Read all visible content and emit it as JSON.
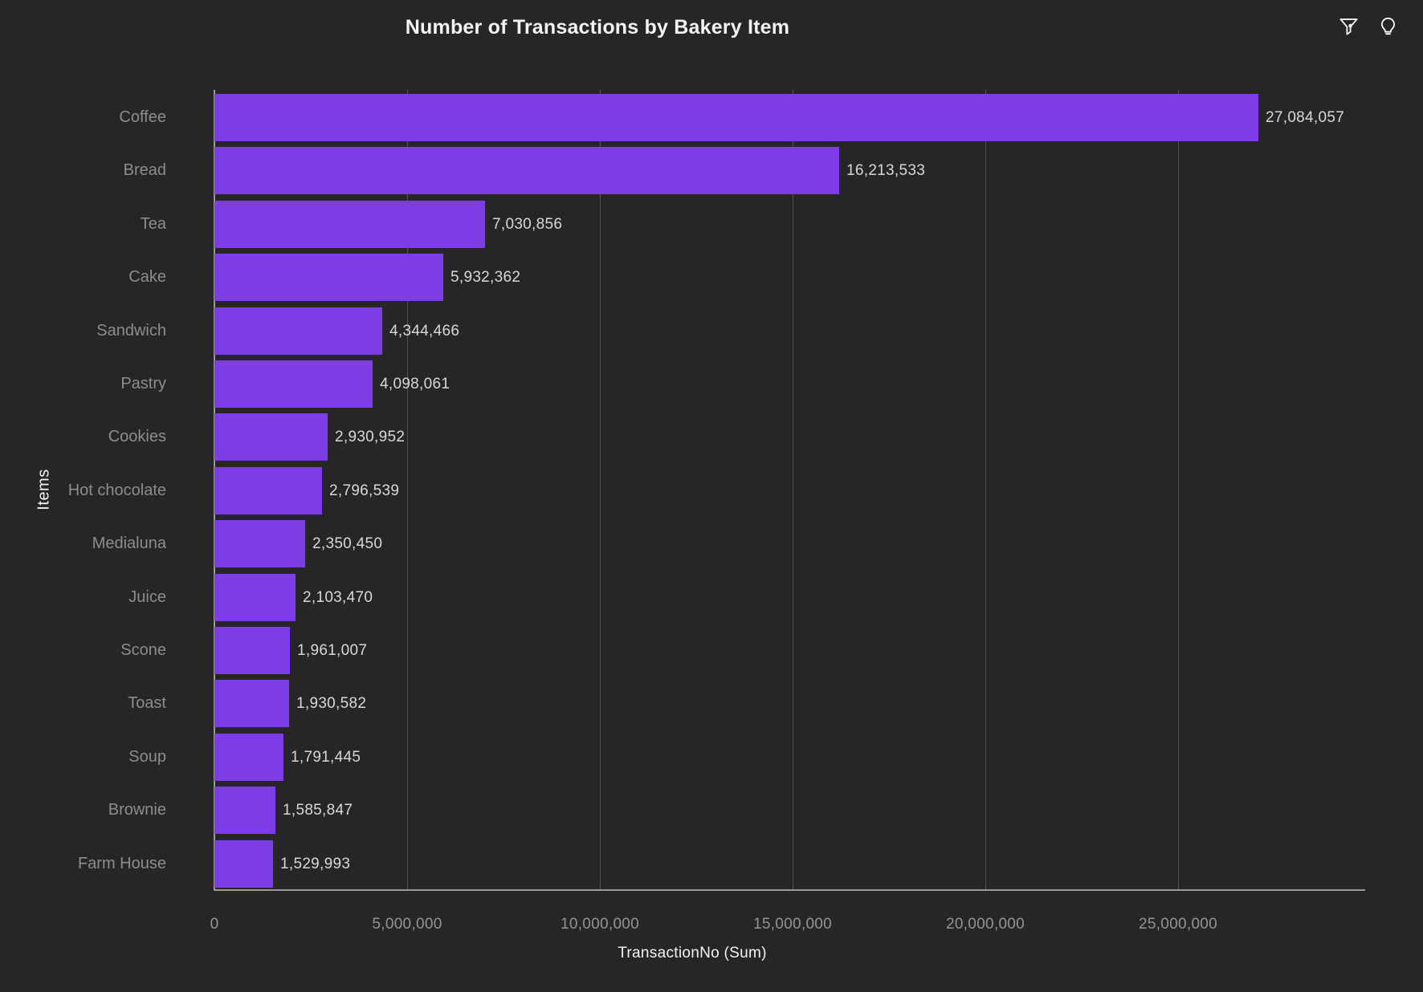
{
  "header": {
    "title": "Number of Transactions by Bakery Item"
  },
  "toolbar": {
    "filter_icon": "filter-icon",
    "lightbulb_icon": "lightbulb-icon"
  },
  "chart_data": {
    "type": "bar",
    "orientation": "horizontal",
    "title": "Number of Transactions by Bakery Item",
    "xlabel": "TransactionNo (Sum)",
    "ylabel": "Items",
    "grid": "vertical",
    "legend_position": "none",
    "xlim": [
      0,
      30000000
    ],
    "x_ticks": [
      0,
      5000000,
      10000000,
      15000000,
      20000000,
      25000000
    ],
    "x_tick_labels": [
      "0",
      "5,000,000",
      "10,000,000",
      "15,000,000",
      "20,000,000",
      "25,000,000"
    ],
    "categories": [
      "Coffee",
      "Bread",
      "Tea",
      "Cake",
      "Sandwich",
      "Pastry",
      "Cookies",
      "Hot chocolate",
      "Medialuna",
      "Juice",
      "Scone",
      "Toast",
      "Soup",
      "Brownie",
      "Farm House"
    ],
    "values": [
      27084057,
      16213533,
      7030856,
      5932362,
      4344466,
      4098061,
      2930952,
      2796539,
      2350450,
      2103470,
      1961007,
      1930582,
      1791445,
      1585847,
      1529993
    ],
    "value_labels": [
      "27,084,057",
      "16,213,533",
      "7,030,856",
      "5,932,362",
      "4,344,466",
      "4,098,061",
      "2,930,952",
      "2,796,539",
      "2,350,450",
      "2,103,470",
      "1,961,007",
      "1,930,582",
      "1,791,445",
      "1,585,847",
      "1,529,993"
    ],
    "bar_color": "#7D3CE6"
  },
  "colors": {
    "background": "#262626",
    "bar": "#7D3CE6",
    "gridline": "#545454",
    "axis_line": "#9a9a9a",
    "category_label": "#8d8d8d",
    "tick_label": "#949494",
    "value_label": "#d8d8d8",
    "title": "#f4f4f4"
  }
}
